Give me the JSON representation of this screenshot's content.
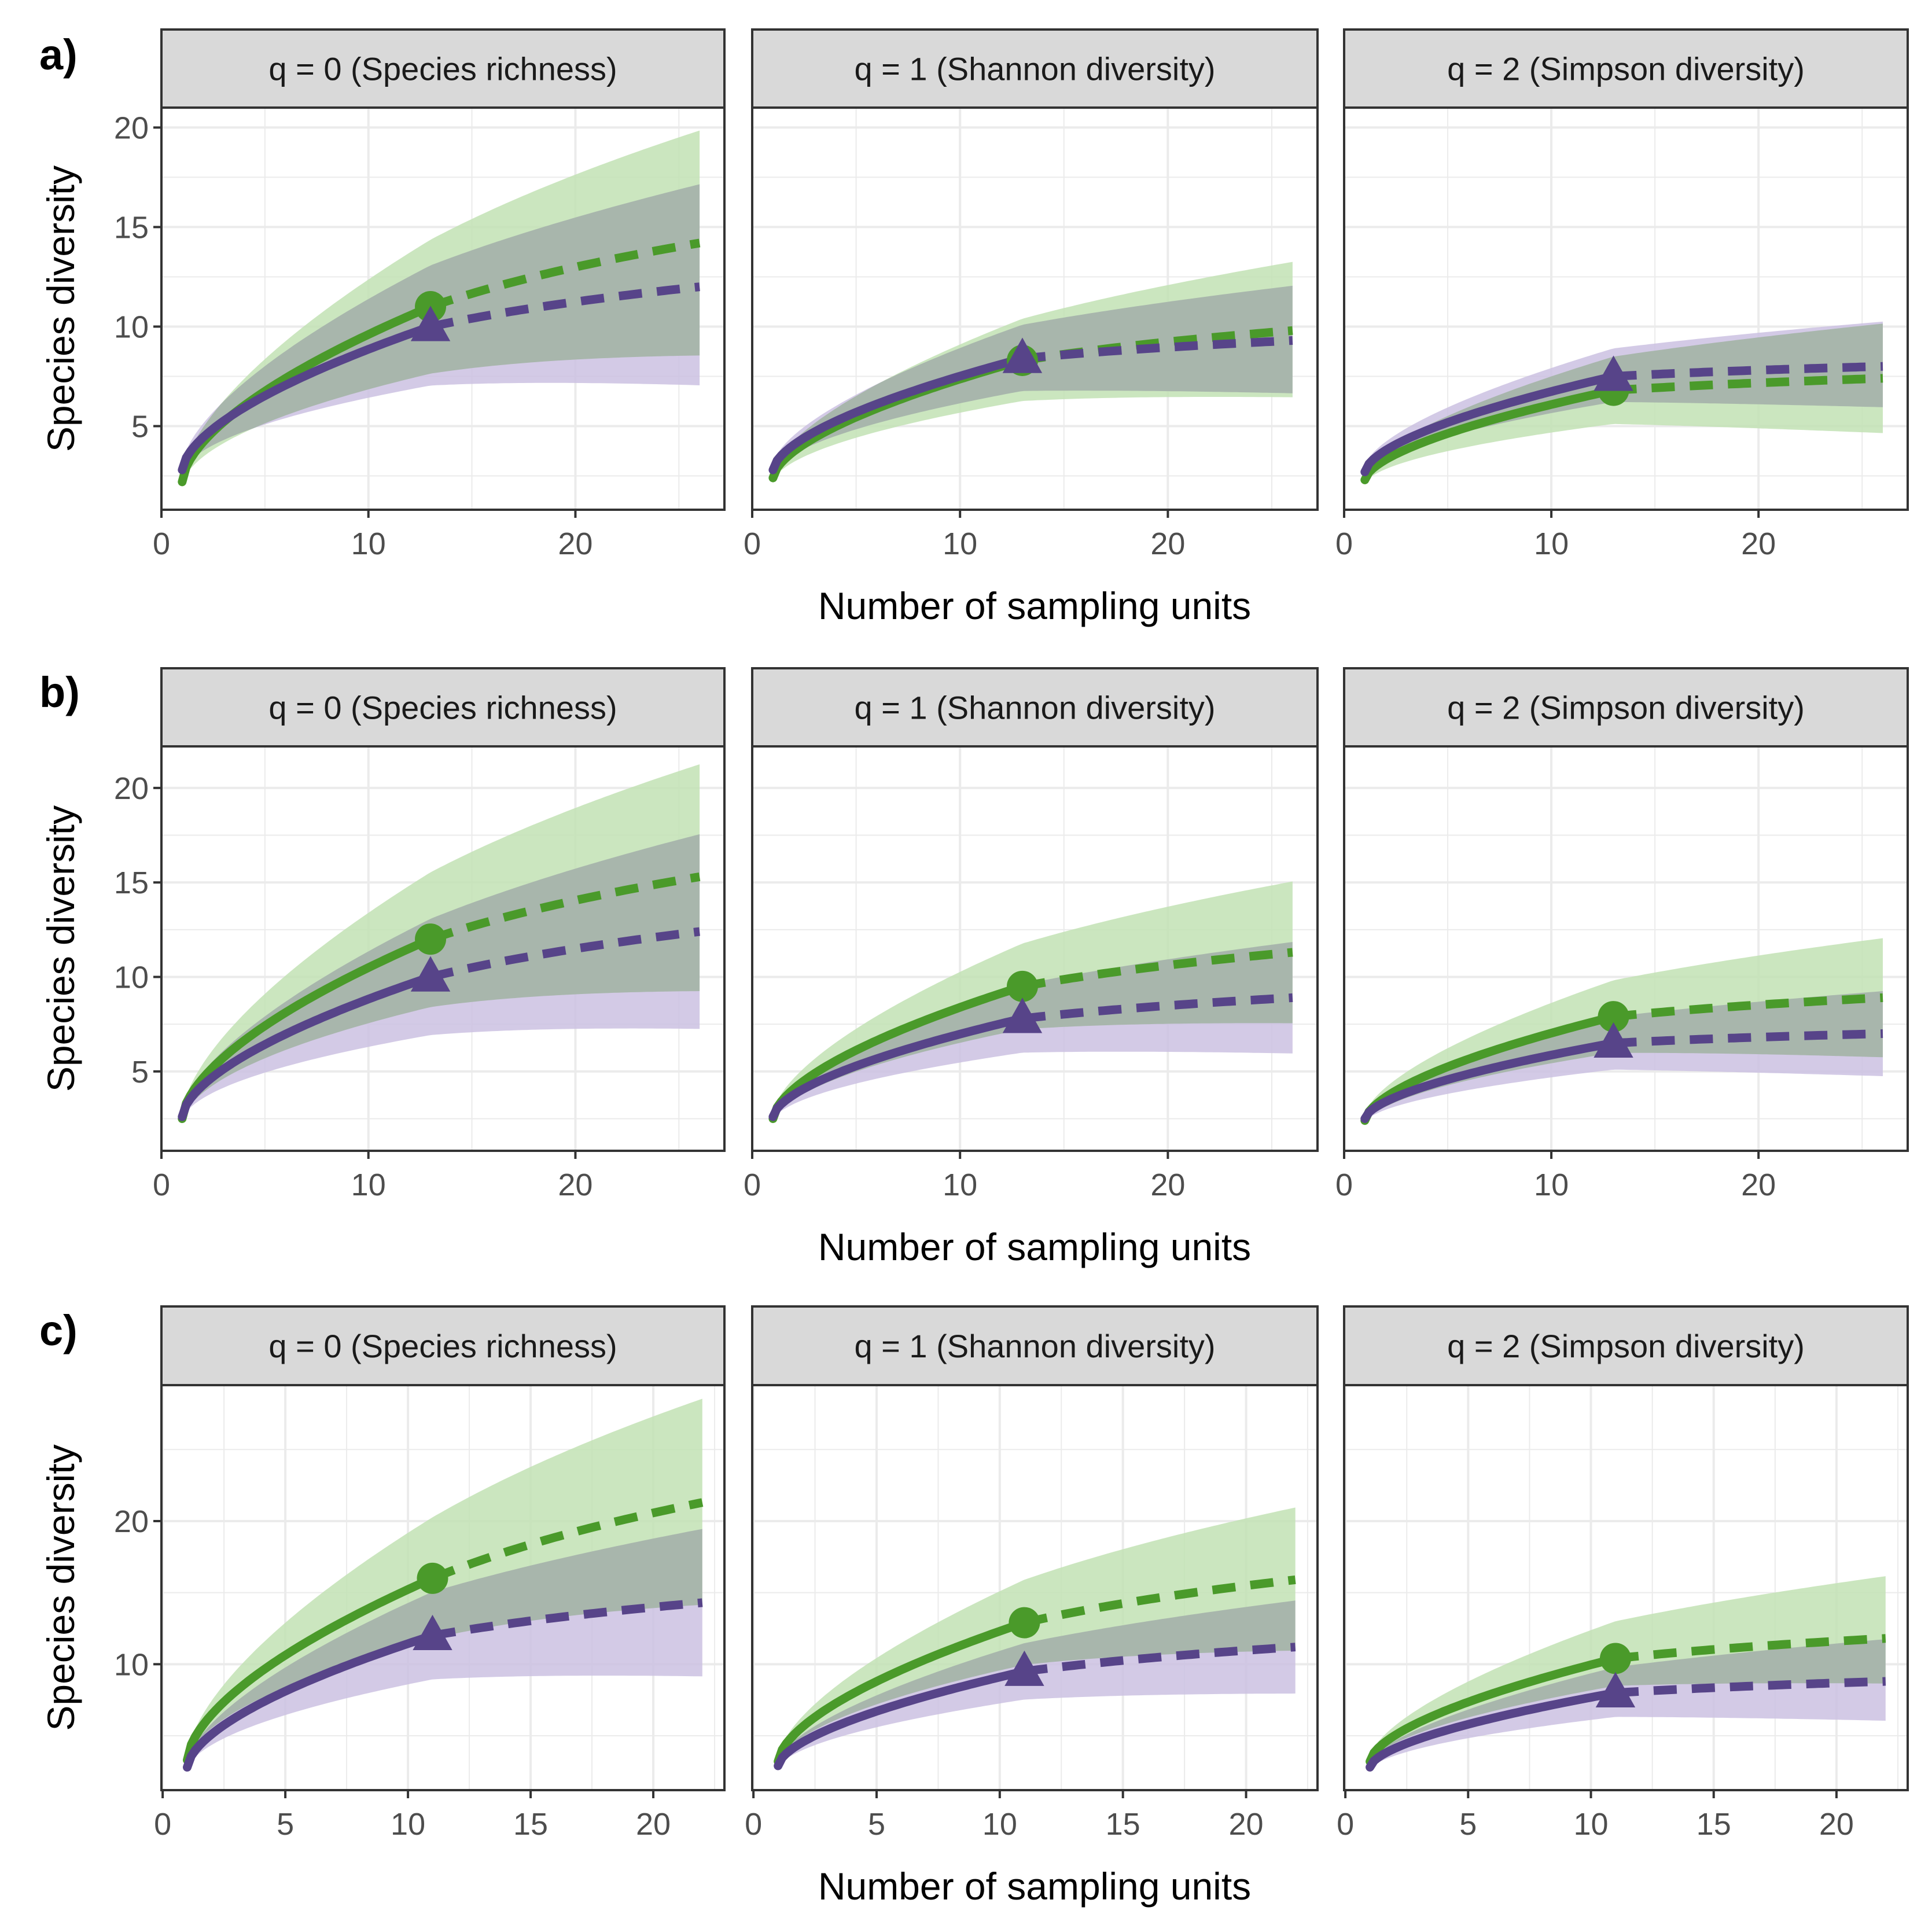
{
  "colors": {
    "green": "#4a9a2a",
    "green_band": "#c2e2b4",
    "purple": "#574489",
    "purple_band": "#cbc1e2",
    "overlap": "#8c9690",
    "strip_fill": "#d9d9d9",
    "grid": "#ebebeb",
    "frame": "#333333",
    "tick_text": "#4d4d4d"
  },
  "figure": {
    "y_axis_label": "Species diversity",
    "x_axis_label": "Number of sampling units",
    "series": [
      {
        "id": "green",
        "marker": "circle"
      },
      {
        "id": "purple",
        "marker": "triangle"
      }
    ]
  },
  "chart_data": [
    {
      "type": "line",
      "row_label": "a)",
      "xlim": [
        0,
        27.2
      ],
      "ylim": [
        0.8,
        21
      ],
      "xticks": [
        0,
        10,
        20
      ],
      "yticks": [
        5,
        10,
        15,
        20
      ],
      "reference_n": 13,
      "max_n": 26,
      "panels": [
        {
          "strip": "q = 0 (Species richness)",
          "curves": [
            {
              "series": "green",
              "obs": 11.0,
              "x1": 2.2,
              "end": 14.2,
              "ci_upper_end": 19.6,
              "ci_lower_end": 8.8
            },
            {
              "series": "purple",
              "obs": 10.0,
              "x1": 2.8,
              "end": 12.0,
              "ci_upper_end": 16.9,
              "ci_lower_end": 7.3
            }
          ]
        },
        {
          "strip": "q = 1 (Shannon diversity)",
          "curves": [
            {
              "series": "green",
              "obs": 8.3,
              "x1": 2.4,
              "end": 9.8,
              "ci_upper_end": 13.0,
              "ci_lower_end": 6.7
            },
            {
              "series": "purple",
              "obs": 8.4,
              "x1": 2.8,
              "end": 9.3,
              "ci_upper_end": 11.8,
              "ci_lower_end": 6.9
            }
          ]
        },
        {
          "strip": "q = 2 (Simpson diversity)",
          "curves": [
            {
              "series": "green",
              "obs": 6.8,
              "x1": 2.3,
              "end": 7.4,
              "ci_upper_end": 9.9,
              "ci_lower_end": 4.9
            },
            {
              "series": "purple",
              "obs": 7.5,
              "x1": 2.7,
              "end": 8.0,
              "ci_upper_end": 10.0,
              "ci_lower_end": 6.2
            }
          ]
        }
      ]
    },
    {
      "type": "line",
      "row_label": "b)",
      "xlim": [
        0,
        27.2
      ],
      "ylim": [
        0.8,
        22.2
      ],
      "xticks": [
        0,
        10,
        20
      ],
      "yticks": [
        5,
        10,
        15,
        20
      ],
      "reference_n": 13,
      "max_n": 26,
      "panels": [
        {
          "strip": "q = 0 (Species richness)",
          "curves": [
            {
              "series": "green",
              "obs": 12.0,
              "x1": 2.5,
              "end": 15.3,
              "ci_upper_end": 21.0,
              "ci_lower_end": 9.5
            },
            {
              "series": "purple",
              "obs": 10.0,
              "x1": 2.6,
              "end": 12.4,
              "ci_upper_end": 17.3,
              "ci_lower_end": 7.5
            }
          ]
        },
        {
          "strip": "q = 1 (Shannon diversity)",
          "curves": [
            {
              "series": "green",
              "obs": 9.5,
              "x1": 2.5,
              "end": 11.3,
              "ci_upper_end": 14.8,
              "ci_lower_end": 7.8
            },
            {
              "series": "purple",
              "obs": 7.8,
              "x1": 2.6,
              "end": 8.9,
              "ci_upper_end": 11.6,
              "ci_lower_end": 6.2
            }
          ]
        },
        {
          "strip": "q = 2 (Simpson diversity)",
          "curves": [
            {
              "series": "green",
              "obs": 7.9,
              "x1": 2.4,
              "end": 8.9,
              "ci_upper_end": 11.8,
              "ci_lower_end": 6.0
            },
            {
              "series": "purple",
              "obs": 6.5,
              "x1": 2.5,
              "end": 7.0,
              "ci_upper_end": 9.0,
              "ci_lower_end": 5.0
            }
          ]
        }
      ]
    },
    {
      "type": "line",
      "row_label": "c)",
      "xlim": [
        -0.05,
        22.9
      ],
      "ylim": [
        1.2,
        29.5
      ],
      "xticks": [
        0,
        5,
        10,
        15,
        20
      ],
      "yticks": [
        10,
        20
      ],
      "reference_n": 11,
      "max_n": 22,
      "panels": [
        {
          "strip": "q = 0 (Species richness)",
          "curves": [
            {
              "series": "green",
              "obs": 16.0,
              "x1": 3.3,
              "end": 21.3,
              "ci_upper_end": 28.3,
              "ci_lower_end": 14.4
            },
            {
              "series": "purple",
              "obs": 12.0,
              "x1": 2.8,
              "end": 14.3,
              "ci_upper_end": 19.2,
              "ci_lower_end": 9.4
            }
          ]
        },
        {
          "strip": "q = 1 (Shannon diversity)",
          "curves": [
            {
              "series": "green",
              "obs": 12.9,
              "x1": 3.2,
              "end": 15.9,
              "ci_upper_end": 20.7,
              "ci_lower_end": 11.2
            },
            {
              "series": "purple",
              "obs": 9.5,
              "x1": 2.9,
              "end": 11.2,
              "ci_upper_end": 14.2,
              "ci_lower_end": 8.2
            }
          ]
        },
        {
          "strip": "q = 2 (Simpson diversity)",
          "curves": [
            {
              "series": "green",
              "obs": 10.4,
              "x1": 3.2,
              "end": 11.8,
              "ci_upper_end": 15.9,
              "ci_lower_end": 8.9
            },
            {
              "series": "purple",
              "obs": 8.0,
              "x1": 2.8,
              "end": 8.8,
              "ci_upper_end": 11.5,
              "ci_lower_end": 6.3
            }
          ]
        }
      ]
    }
  ]
}
